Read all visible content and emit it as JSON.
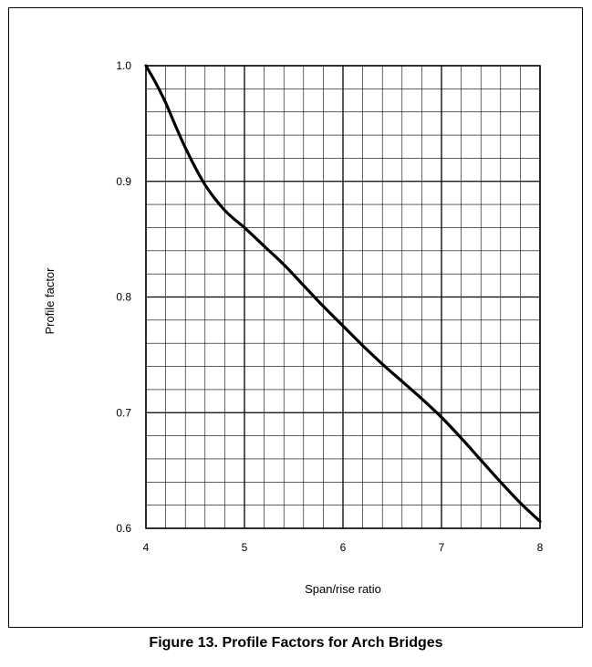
{
  "caption": "Figure 13. Profile Factors for Arch Bridges",
  "chart_data": {
    "type": "line",
    "title": "",
    "xlabel": "Span/rise ratio",
    "ylabel": "Profile factor",
    "xlim": [
      4,
      8
    ],
    "ylim": [
      0.6,
      1.0
    ],
    "x_ticks": [
      4,
      5,
      6,
      7,
      8
    ],
    "x_tick_labels": [
      "4",
      "5",
      "6",
      "7",
      "8"
    ],
    "y_ticks": [
      0.6,
      0.7,
      0.8,
      0.9,
      1.0
    ],
    "y_tick_labels": [
      "0.6",
      "0.7",
      "0.8",
      "0.9",
      "1.0"
    ],
    "grid": true,
    "minor_x_step": 0.2,
    "minor_y_step": 0.02,
    "series": [
      {
        "x": [
          4.0,
          4.1,
          4.2,
          4.3,
          4.4,
          4.5,
          4.6,
          4.7,
          4.8,
          4.9,
          5.0,
          5.2,
          5.4,
          5.6,
          5.8,
          6.0,
          6.2,
          6.4,
          6.6,
          6.8,
          7.0,
          7.2,
          7.4,
          7.6,
          7.8,
          8.0
        ],
        "y": [
          1.0,
          0.985,
          0.968,
          0.948,
          0.929,
          0.912,
          0.897,
          0.885,
          0.875,
          0.867,
          0.86,
          0.844,
          0.828,
          0.81,
          0.792,
          0.775,
          0.758,
          0.742,
          0.727,
          0.712,
          0.696,
          0.678,
          0.659,
          0.64,
          0.622,
          0.606
        ]
      }
    ],
    "colors": {
      "line": "#000000",
      "grid": "#000000"
    }
  }
}
